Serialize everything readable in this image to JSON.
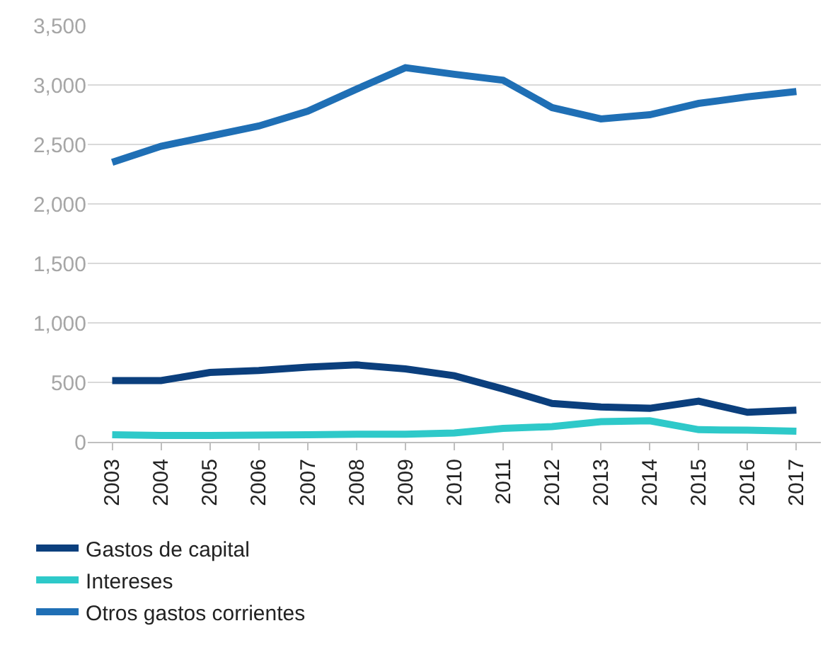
{
  "chart_data": {
    "type": "line",
    "categories": [
      "2003",
      "2004",
      "2005",
      "2006",
      "2007",
      "2008",
      "2009",
      "2010",
      "2011",
      "2012",
      "2013",
      "2014",
      "2015",
      "2016",
      "2017"
    ],
    "series": [
      {
        "name": "Gastos de capital",
        "color": "#0b3f7d",
        "values": [
          515,
          515,
          583,
          600,
          628,
          647,
          613,
          556,
          444,
          323,
          293,
          282,
          342,
          248,
          267
        ]
      },
      {
        "name": "Intereses",
        "color": "#2ec9c9",
        "values": [
          60,
          53,
          53,
          56,
          60,
          64,
          64,
          75,
          113,
          128,
          169,
          177,
          102,
          98,
          90
        ]
      },
      {
        "name": "Otros gastos corrientes",
        "color": "#1f6fb5",
        "values": [
          2350,
          2485,
          2570,
          2655,
          2780,
          2965,
          3145,
          3090,
          3040,
          2810,
          2715,
          2750,
          2845,
          2900,
          2945
        ]
      }
    ],
    "ylim": [
      0,
      3500
    ],
    "yticks": [
      {
        "value": 0,
        "label": "0"
      },
      {
        "value": 500,
        "label": "500"
      },
      {
        "value": 1000,
        "label": "1,000"
      },
      {
        "value": 1500,
        "label": "1,500"
      },
      {
        "value": 2000,
        "label": "2,000"
      },
      {
        "value": 2500,
        "label": "2,500"
      },
      {
        "value": 3000,
        "label": "3,000"
      },
      {
        "value": 3500,
        "label": "3,500"
      }
    ],
    "grid": "y",
    "legend": "bottom",
    "marker": "none",
    "line_style": "solid"
  }
}
